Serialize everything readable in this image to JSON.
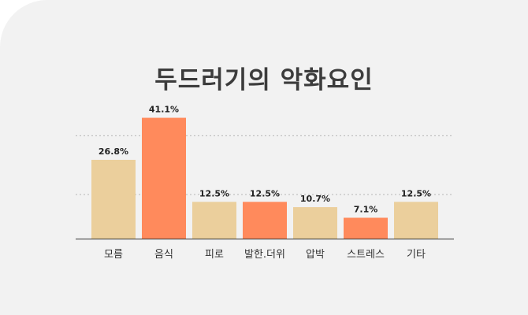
{
  "chart_data": {
    "type": "bar",
    "title": "두드러기의 악화요인",
    "categories": [
      "모름",
      "음식",
      "피로",
      "발한.더위",
      "압박",
      "스트레스",
      "기타"
    ],
    "values": [
      26.8,
      41.1,
      12.5,
      12.5,
      10.7,
      7.1,
      12.5
    ],
    "value_labels": [
      "26.8%",
      "41.1%",
      "12.5%",
      "12.5%",
      "10.7%",
      "7.1%",
      "12.5%"
    ],
    "bar_colors": [
      "#ebcf9c",
      "#ff8a5c",
      "#ebcf9c",
      "#ff8a5c",
      "#ebcf9c",
      "#ff8a5c",
      "#ebcf9c"
    ],
    "ylim": [
      0,
      45
    ],
    "grid": "dashed horizontal",
    "legend": "none"
  }
}
